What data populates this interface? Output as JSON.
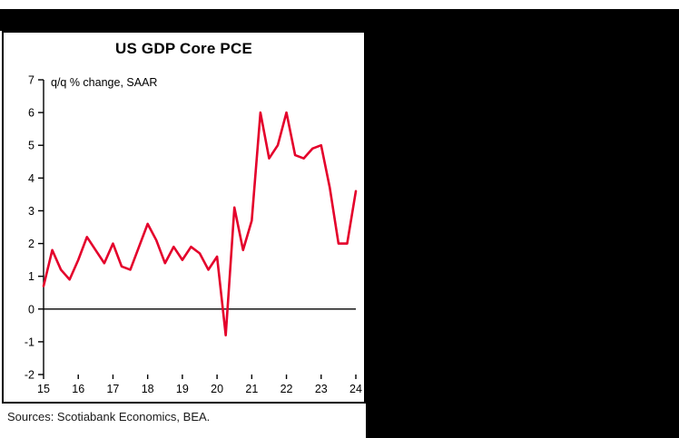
{
  "page": {
    "source_note": "Sources: Scotiabank Economics, BEA."
  },
  "chart": {
    "title": "US GDP Core PCE",
    "annotation": "q/q % change, SAAR",
    "line_color": "#e4002b",
    "axis_color": "#000000"
  },
  "chart_data": {
    "type": "line",
    "title": "US GDP Core PCE",
    "annotation": "q/q % change, SAAR",
    "source": "Sources: Scotiabank Economics, BEA.",
    "x_unit": "quarterly",
    "x_start": 2015,
    "x_step": 0.25,
    "xlim": [
      2015,
      2024
    ],
    "ylim": [
      -2,
      7
    ],
    "y_ticks": [
      7,
      6,
      5,
      4,
      3,
      2,
      1,
      0,
      -1,
      -2
    ],
    "x_ticks": [
      2015,
      2016,
      2017,
      2018,
      2019,
      2020,
      2021,
      2022,
      2023,
      2024
    ],
    "x_tick_labels": [
      "15",
      "16",
      "17",
      "18",
      "19",
      "20",
      "21",
      "22",
      "23",
      "24"
    ],
    "zero_line": true,
    "grid": false,
    "legend": false,
    "series": [
      {
        "name": "US GDP Core PCE q/q % change, SAAR",
        "color": "#e4002b",
        "values": [
          0.7,
          1.8,
          1.2,
          0.9,
          1.5,
          2.2,
          1.8,
          1.4,
          2.0,
          1.3,
          1.2,
          1.9,
          2.6,
          2.1,
          1.4,
          1.9,
          1.5,
          1.9,
          1.7,
          1.2,
          1.6,
          -0.8,
          3.1,
          1.8,
          2.7,
          6.0,
          4.6,
          5.0,
          6.0,
          4.7,
          4.6,
          4.9,
          5.0,
          3.7,
          2.0,
          2.0,
          3.6
        ]
      }
    ]
  }
}
